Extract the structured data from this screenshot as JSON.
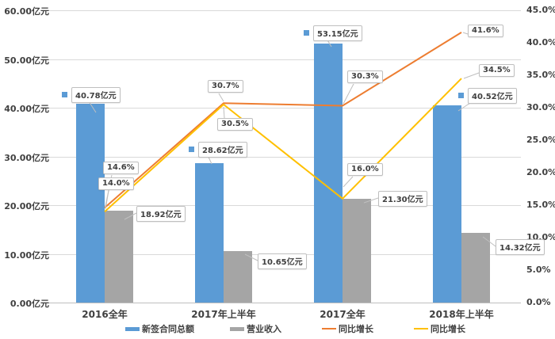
{
  "chart_data": {
    "type": "combo-bar-line",
    "title": "",
    "categories": [
      "2016全年",
      "2017年上半年",
      "2017全年",
      "2018年上半年"
    ],
    "series": [
      {
        "name": "新签合同总额",
        "type": "bar",
        "axis": "left",
        "color": "#5b9bd5",
        "values": [
          40.78,
          28.62,
          53.15,
          40.52
        ],
        "labels": [
          "40.78亿元",
          "28.62亿元",
          "53.15亿元",
          "40.52亿元"
        ],
        "show_legend_key_on_labels": true
      },
      {
        "name": "营业收入",
        "type": "bar",
        "axis": "left",
        "color": "#a5a5a5",
        "values": [
          18.92,
          10.65,
          21.3,
          14.32
        ],
        "labels": [
          "18.92亿元",
          "10.65亿元",
          "21.30亿元",
          "14.32亿元"
        ],
        "show_legend_key_on_labels": false
      },
      {
        "name": "同比增长",
        "type": "line",
        "axis": "right",
        "color": "#ed7d31",
        "values": [
          14.6,
          30.7,
          30.3,
          41.6
        ],
        "labels": [
          "14.6%",
          "30.7%",
          "30.3%",
          "41.6%"
        ],
        "show_legend_key_on_labels": false
      },
      {
        "name": "同比增长",
        "type": "line",
        "axis": "right",
        "color": "#ffc000",
        "values": [
          14.0,
          30.5,
          16.0,
          34.5
        ],
        "labels": [
          "14.0%",
          "30.5%",
          "16.0%",
          "34.5%"
        ],
        "show_legend_key_on_labels": false
      }
    ],
    "left_axis": {
      "min": 0,
      "max": 60,
      "step": 10,
      "tick_labels": [
        "0.00亿元",
        "10.00亿元",
        "20.00亿元",
        "30.00亿元",
        "40.00亿元",
        "50.00亿元",
        "60.00亿元"
      ]
    },
    "right_axis": {
      "min": 0,
      "max": 45,
      "step": 5,
      "tick_labels": [
        "0.0%",
        "5.0%",
        "10.0%",
        "15.0%",
        "20.0%",
        "25.0%",
        "30.0%",
        "35.0%",
        "40.0%",
        "45.0%"
      ]
    },
    "legend": {
      "position": "bottom",
      "items": [
        {
          "label": "新签合同总额",
          "color": "#5b9bd5",
          "shape": "bar"
        },
        {
          "label": "营业收入",
          "color": "#a5a5a5",
          "shape": "bar"
        },
        {
          "label": "同比增长",
          "color": "#ed7d31",
          "shape": "line"
        },
        {
          "label": "同比增长",
          "color": "#ffc000",
          "shape": "line"
        }
      ]
    },
    "grid": true,
    "colors": {
      "gridline": "#d9d9d9",
      "axis_line": "#bfbfbf",
      "axis_text": "#404040",
      "label_border": "#bfbfbf",
      "background": "#ffffff"
    }
  }
}
